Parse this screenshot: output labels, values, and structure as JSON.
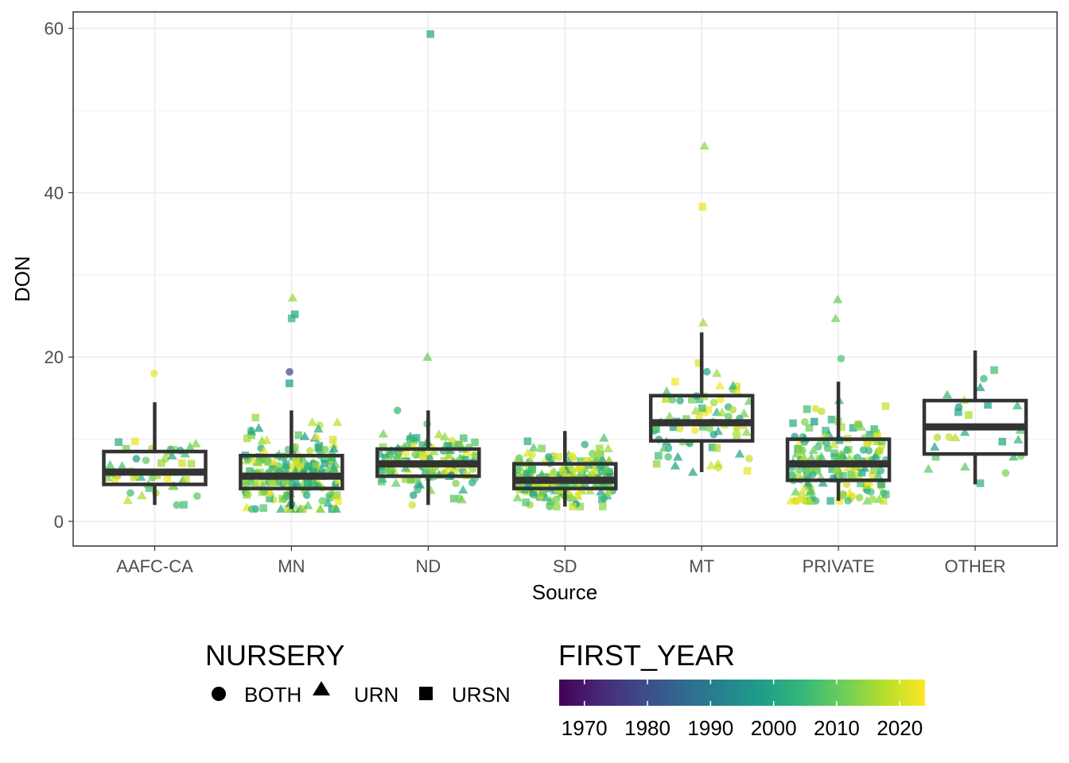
{
  "chart_data": {
    "type": "box",
    "overlay": "jittered scatter",
    "xlabel": "Source",
    "ylabel": "DON",
    "categories": [
      "AAFC-CA",
      "MN",
      "ND",
      "SD",
      "MT",
      "PRIVATE",
      "OTHER"
    ],
    "ylim": [
      -3,
      62
    ],
    "yticks": [
      0,
      20,
      40,
      60
    ],
    "grid": true,
    "boxes": [
      {
        "category": "AAFC-CA",
        "whisker_low": 2.0,
        "q1": 4.5,
        "median": 6.0,
        "q3": 8.5,
        "whisker_high": 14.5
      },
      {
        "category": "MN",
        "whisker_low": 1.5,
        "q1": 4.0,
        "median": 5.5,
        "q3": 8.0,
        "whisker_high": 13.5
      },
      {
        "category": "ND",
        "whisker_low": 2.0,
        "q1": 5.5,
        "median": 7.0,
        "q3": 8.8,
        "whisker_high": 13.5
      },
      {
        "category": "SD",
        "whisker_low": 1.8,
        "q1": 4.0,
        "median": 5.0,
        "q3": 7.0,
        "whisker_high": 11.0
      },
      {
        "category": "MT",
        "whisker_low": 6.0,
        "q1": 9.8,
        "median": 12.0,
        "q3": 15.3,
        "whisker_high": 23.0
      },
      {
        "category": "PRIVATE",
        "whisker_low": 2.5,
        "q1": 5.0,
        "median": 7.0,
        "q3": 10.0,
        "whisker_high": 17.0
      },
      {
        "category": "OTHER",
        "whisker_low": 4.5,
        "q1": 8.2,
        "median": 11.5,
        "q3": 14.7,
        "whisker_high": 20.8
      }
    ],
    "outliers": [
      {
        "category": "AAFC-CA",
        "y": 18.0,
        "nursery": "BOTH",
        "first_year": 2022
      },
      {
        "category": "MN",
        "y": 27.2,
        "nursery": "URN",
        "first_year": 2015
      },
      {
        "category": "MN",
        "y": 25.2,
        "nursery": "URSN",
        "first_year": 2000
      },
      {
        "category": "MN",
        "y": 24.7,
        "nursery": "URSN",
        "first_year": 2003
      },
      {
        "category": "MN",
        "y": 18.2,
        "nursery": "BOTH",
        "first_year": 1980
      },
      {
        "category": "MN",
        "y": 16.8,
        "nursery": "URSN",
        "first_year": 1998
      },
      {
        "category": "ND",
        "y": 59.3,
        "nursery": "URSN",
        "first_year": 2000
      },
      {
        "category": "ND",
        "y": 20.0,
        "nursery": "URN",
        "first_year": 2010
      },
      {
        "category": "MT",
        "y": 45.7,
        "nursery": "URN",
        "first_year": 2014
      },
      {
        "category": "MT",
        "y": 38.3,
        "nursery": "URSN",
        "first_year": 2022
      },
      {
        "category": "MT",
        "y": 24.2,
        "nursery": "URN",
        "first_year": 2016
      },
      {
        "category": "PRIVATE",
        "y": 27.0,
        "nursery": "URN",
        "first_year": 2010
      },
      {
        "category": "PRIVATE",
        "y": 24.7,
        "nursery": "URN",
        "first_year": 2012
      },
      {
        "category": "PRIVATE",
        "y": 19.8,
        "nursery": "BOTH",
        "first_year": 2008
      }
    ],
    "jitter_points_per_category": [
      45,
      220,
      140,
      230,
      75,
      170,
      25
    ],
    "legend": {
      "position": "bottom",
      "shape": {
        "title": "NURSERY",
        "items": [
          {
            "label": "BOTH",
            "shape": "circle"
          },
          {
            "label": "URN",
            "shape": "triangle"
          },
          {
            "label": "URSN",
            "shape": "square"
          }
        ]
      },
      "color": {
        "title": "FIRST_YEAR",
        "range": [
          1966,
          2024
        ],
        "ticks": [
          "1970",
          "1980",
          "1990",
          "2000",
          "2010",
          "2020"
        ],
        "palette": "viridis",
        "stops": [
          "#440154",
          "#482878",
          "#3e4989",
          "#31688e",
          "#26828e",
          "#1f9e89",
          "#35b779",
          "#6ece58",
          "#b5de2b",
          "#fde725"
        ]
      }
    }
  },
  "colors": {
    "box_stroke": "#333333",
    "grid": "#ebebeb",
    "panel_border": "#333333",
    "background": "#ffffff"
  }
}
